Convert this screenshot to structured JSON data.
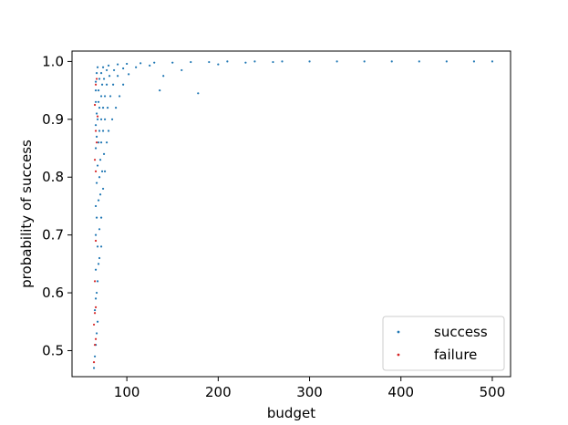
{
  "chart_data": {
    "type": "scatter",
    "title": "",
    "xlabel": "budget",
    "ylabel": "probability of success",
    "xlim": [
      40,
      520
    ],
    "ylim": [
      0.455,
      1.018
    ],
    "x_ticks": [
      100,
      200,
      300,
      400,
      500
    ],
    "x_tick_labels": [
      "100",
      "200",
      "300",
      "400",
      "500"
    ],
    "y_ticks": [
      0.5,
      0.6,
      0.7,
      0.8,
      0.9,
      1.0
    ],
    "y_tick_labels": [
      "0.5",
      "0.6",
      "0.7",
      "0.8",
      "0.9",
      "1.0"
    ],
    "grid": false,
    "legend_position": "lower-right",
    "series": [
      {
        "name": "success",
        "color": "#1f77b4",
        "points": [
          [
            64,
            0.47
          ],
          [
            65,
            0.49
          ],
          [
            66,
            0.51
          ],
          [
            67,
            0.53
          ],
          [
            68,
            0.55
          ],
          [
            65,
            0.57
          ],
          [
            66,
            0.59
          ],
          [
            67,
            0.6
          ],
          [
            68,
            0.62
          ],
          [
            66,
            0.64
          ],
          [
            69,
            0.65
          ],
          [
            70,
            0.66
          ],
          [
            68,
            0.68
          ],
          [
            72,
            0.68
          ],
          [
            66,
            0.7
          ],
          [
            70,
            0.71
          ],
          [
            67,
            0.73
          ],
          [
            72,
            0.73
          ],
          [
            66,
            0.75
          ],
          [
            69,
            0.76
          ],
          [
            71,
            0.77
          ],
          [
            74,
            0.78
          ],
          [
            67,
            0.79
          ],
          [
            70,
            0.8
          ],
          [
            73,
            0.81
          ],
          [
            76,
            0.81
          ],
          [
            68,
            0.82
          ],
          [
            71,
            0.83
          ],
          [
            75,
            0.84
          ],
          [
            66,
            0.85
          ],
          [
            69,
            0.86
          ],
          [
            72,
            0.86
          ],
          [
            78,
            0.86
          ],
          [
            67,
            0.87
          ],
          [
            70,
            0.88
          ],
          [
            74,
            0.88
          ],
          [
            80,
            0.88
          ],
          [
            66,
            0.89
          ],
          [
            68,
            0.9
          ],
          [
            72,
            0.9
          ],
          [
            76,
            0.9
          ],
          [
            84,
            0.9
          ],
          [
            67,
            0.91
          ],
          [
            70,
            0.92
          ],
          [
            74,
            0.92
          ],
          [
            79,
            0.92
          ],
          [
            88,
            0.92
          ],
          [
            66,
            0.93
          ],
          [
            69,
            0.93
          ],
          [
            72,
            0.94
          ],
          [
            76,
            0.94
          ],
          [
            82,
            0.94
          ],
          [
            92,
            0.94
          ],
          [
            66,
            0.95
          ],
          [
            69,
            0.95
          ],
          [
            73,
            0.96
          ],
          [
            78,
            0.96
          ],
          [
            85,
            0.96
          ],
          [
            96,
            0.96
          ],
          [
            66,
            0.965
          ],
          [
            70,
            0.97
          ],
          [
            75,
            0.97
          ],
          [
            81,
            0.975
          ],
          [
            90,
            0.975
          ],
          [
            102,
            0.978
          ],
          [
            67,
            0.98
          ],
          [
            72,
            0.98
          ],
          [
            78,
            0.985
          ],
          [
            86,
            0.985
          ],
          [
            96,
            0.988
          ],
          [
            110,
            0.99
          ],
          [
            125,
            0.993
          ],
          [
            68,
            0.99
          ],
          [
            74,
            0.99
          ],
          [
            80,
            0.993
          ],
          [
            90,
            0.995
          ],
          [
            100,
            0.996
          ],
          [
            115,
            0.997
          ],
          [
            130,
            0.998
          ],
          [
            150,
            0.998
          ],
          [
            170,
            0.999
          ],
          [
            190,
            0.999
          ],
          [
            210,
            1.0
          ],
          [
            240,
            1.0
          ],
          [
            270,
            1.0
          ],
          [
            300,
            1.0
          ],
          [
            330,
            1.0
          ],
          [
            360,
            1.0
          ],
          [
            390,
            1.0
          ],
          [
            420,
            1.0
          ],
          [
            450,
            1.0
          ],
          [
            480,
            1.0
          ],
          [
            500,
            1.0
          ],
          [
            136,
            0.95
          ],
          [
            178,
            0.945
          ],
          [
            140,
            0.975
          ],
          [
            160,
            0.985
          ],
          [
            200,
            0.995
          ],
          [
            230,
            0.998
          ],
          [
            260,
            0.999
          ]
        ]
      },
      {
        "name": "failure",
        "color": "#d62728",
        "points": [
          [
            64,
            0.48
          ],
          [
            65,
            0.51
          ],
          [
            66,
            0.52
          ],
          [
            64,
            0.545
          ],
          [
            65,
            0.565
          ],
          [
            66,
            0.575
          ],
          [
            65,
            0.62
          ],
          [
            66,
            0.69
          ],
          [
            66,
            0.81
          ],
          [
            65,
            0.83
          ],
          [
            67,
            0.86
          ],
          [
            66,
            0.88
          ],
          [
            68,
            0.905
          ],
          [
            65,
            0.925
          ],
          [
            66,
            0.96
          ],
          [
            67,
            0.97
          ]
        ]
      }
    ]
  }
}
